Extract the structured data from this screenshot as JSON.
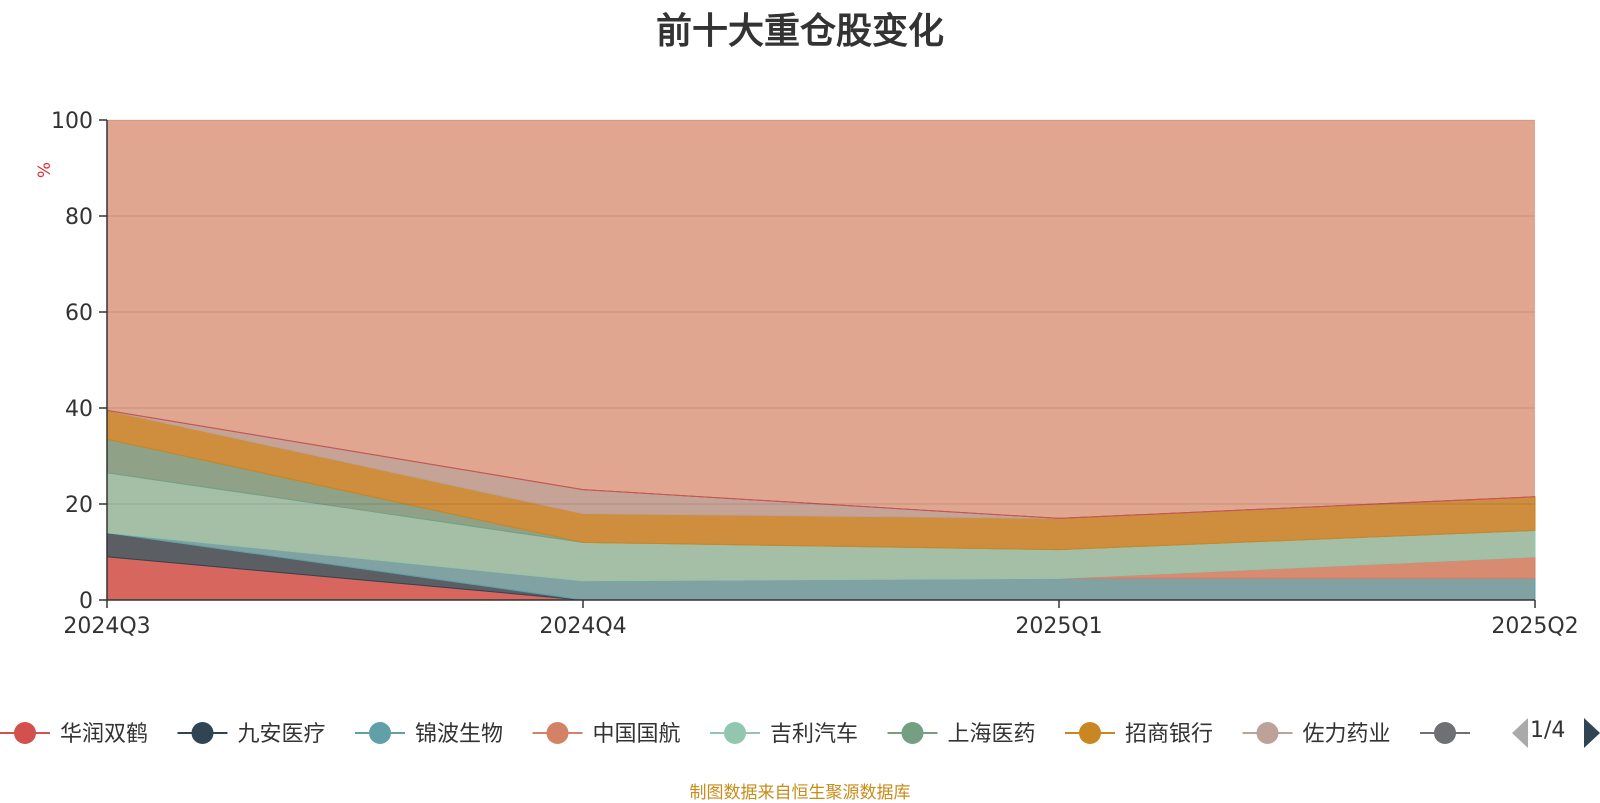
{
  "page": {
    "title": "前十大重仓股变化",
    "source": "制图数据来自恒生聚源数据库",
    "legend_page": "1/4"
  },
  "chart_data": {
    "type": "area",
    "stacked": true,
    "title": "前十大重仓股变化",
    "ylabel": "%",
    "xlabel": "",
    "ylim": [
      0,
      100
    ],
    "yticks": [
      0,
      20,
      40,
      60,
      80,
      100
    ],
    "grid": true,
    "legend_position": "bottom",
    "categories": [
      "2024Q3",
      "2024Q4",
      "2025Q1",
      "2025Q2"
    ],
    "series": [
      {
        "name": "华润双鹤",
        "color": "#d4504f",
        "values": [
          9.0,
          0.0,
          0.0,
          0.0
        ]
      },
      {
        "name": "九安医疗",
        "color": "#2f4554",
        "values": [
          5.0,
          0.0,
          0.0,
          0.0
        ]
      },
      {
        "name": "锦波生物",
        "color": "#61a0a8",
        "values": [
          0.0,
          4.0,
          4.5,
          4.5
        ]
      },
      {
        "name": "中国国航",
        "color": "#d48265",
        "values": [
          0.0,
          0.0,
          0.0,
          4.5
        ]
      },
      {
        "name": "吉利汽车",
        "color": "#91c7ae",
        "values": [
          12.5,
          8.0,
          6.0,
          5.5
        ]
      },
      {
        "name": "上海医药",
        "color": "#749f83",
        "values": [
          7.0,
          0.0,
          0.0,
          0.0
        ]
      },
      {
        "name": "招商银行",
        "color": "#ca8622",
        "values": [
          6.0,
          6.0,
          6.5,
          7.0
        ]
      },
      {
        "name": "佐力药业",
        "color": "#bda29a",
        "values": [
          0.0,
          5.0,
          0.0,
          0.0
        ]
      },
      {
        "name": "",
        "color": "#6e7074",
        "values": [
          0.0,
          0.0,
          0.0,
          0.0
        ]
      },
      {
        "name": "",
        "color": "#d4504f",
        "values": [
          0.0,
          0.0,
          0.0,
          0.0
        ]
      }
    ]
  }
}
